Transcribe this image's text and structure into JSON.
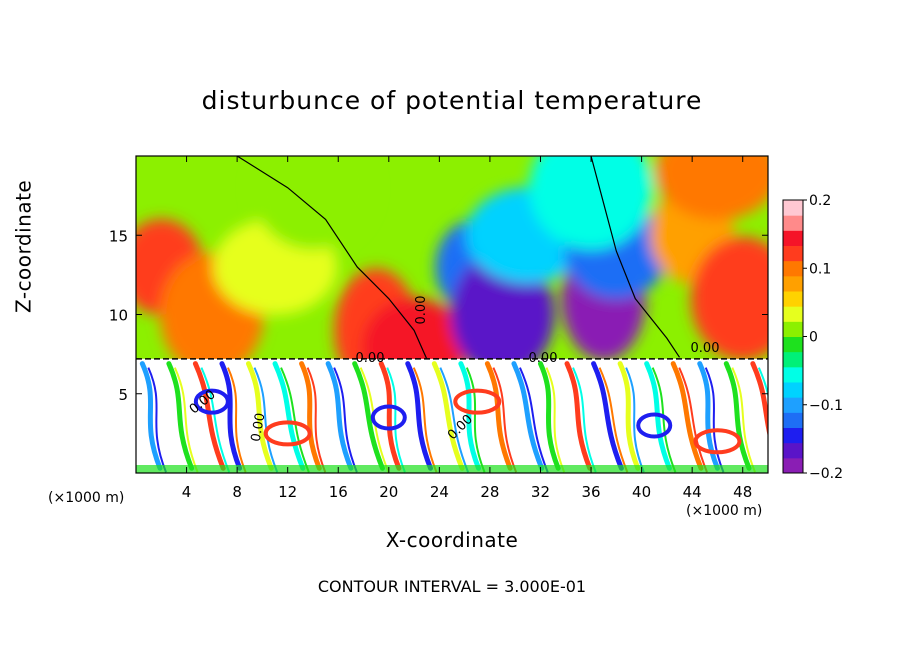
{
  "chart_data": {
    "type": "heatmap",
    "title": "disturbunce of potential temperature",
    "xlabel": "X-coordinate",
    "ylabel": "Z-coordinate",
    "x_unit_left": "(×1000 m)",
    "x_unit_right": "(×1000 m)",
    "xlim": [
      0,
      50
    ],
    "ylim": [
      0,
      20
    ],
    "x_ticks": [
      4,
      8,
      12,
      16,
      20,
      24,
      28,
      32,
      36,
      40,
      44,
      48
    ],
    "y_ticks": [
      5,
      10,
      15
    ],
    "colorbar": {
      "min": -0.2,
      "max": 0.2,
      "ticks": [
        0.2,
        0.1,
        0,
        -0.1,
        -0.2
      ],
      "tick_labels": [
        "0.2",
        "0.1",
        "0",
        "−0.1",
        "−0.2"
      ],
      "colors": [
        "#8a1eb4",
        "#5a14c8",
        "#1e1ef0",
        "#1e6ef5",
        "#1ea0ff",
        "#00d2ff",
        "#00ffe6",
        "#00f078",
        "#1ee11e",
        "#8cf000",
        "#e6ff1e",
        "#ffd200",
        "#ffa000",
        "#ff7800",
        "#ff3c1e",
        "#f51428",
        "#ff8a8a",
        "#ffc8d2"
      ]
    },
    "contour_labels": [
      "0.00",
      "0.00",
      "0.00",
      "0.00",
      "0.00",
      "0.00",
      "0.00"
    ],
    "contour_interval_label": "CONTOUR INTERVAL = 3.000E-01",
    "fields": {
      "upper_layer_z_range": [
        7.2,
        20
      ],
      "interface_z": 7.2,
      "blobs": [
        {
          "x": 2,
          "z": 13,
          "value": 0.12
        },
        {
          "x": 6,
          "z": 10,
          "value": 0.1
        },
        {
          "x": 11,
          "z": 13,
          "value": 0.04
        },
        {
          "x": 19,
          "z": 9,
          "value": 0.12
        },
        {
          "x": 22,
          "z": 8,
          "value": 0.14
        },
        {
          "x": 14,
          "z": 18,
          "value": 0.02
        },
        {
          "x": 27,
          "z": 13,
          "value": -0.12
        },
        {
          "x": 29,
          "z": 10,
          "value": -0.16
        },
        {
          "x": 31,
          "z": 15,
          "value": -0.08
        },
        {
          "x": 37,
          "z": 11,
          "value": -0.18
        },
        {
          "x": 38,
          "z": 14,
          "value": -0.12
        },
        {
          "x": 36,
          "z": 18,
          "value": -0.05
        },
        {
          "x": 44,
          "z": 15,
          "value": 0.08
        },
        {
          "x": 48,
          "z": 11,
          "value": 0.12
        },
        {
          "x": 46,
          "z": 19,
          "value": 0.1
        }
      ]
    }
  }
}
